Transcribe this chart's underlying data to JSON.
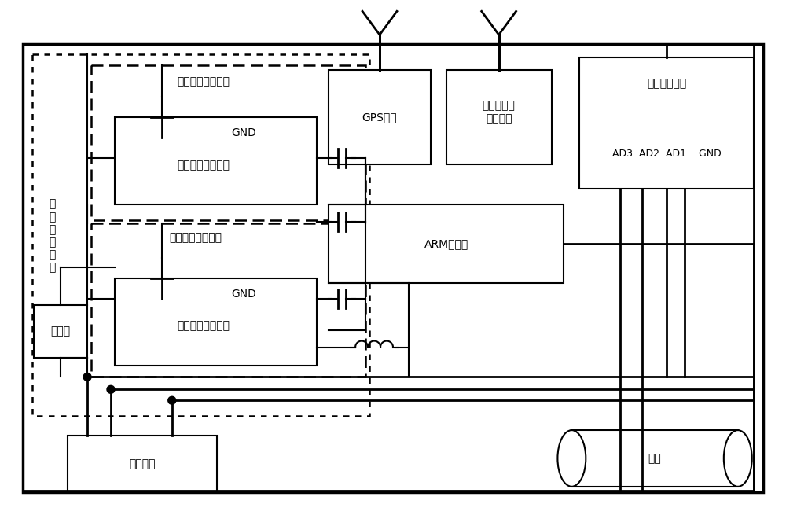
{
  "fig_width": 10.0,
  "fig_height": 6.69,
  "bg_color": "#ffffff",
  "labels": {
    "elec_detect": "电\n流\n检\n测\n单\n元",
    "ac_collect_unit": "交流电流采集单元",
    "ac_chip": "交流电流采集芯片",
    "dc_collect_unit": "直流电流采集单元",
    "dc_chip": "直流电流采集芯片",
    "relay": "继电器",
    "probe": "计划探头",
    "gps": "GPS单元",
    "wireless": "近距离无线\n传输单元",
    "voltage": "电压采集模块",
    "arm": "ARM处理器",
    "pipeline": "管道",
    "gnd_ac": "GND",
    "gnd_dc": "GND",
    "ad_labels": "AD3  AD2  AD1    GND"
  }
}
